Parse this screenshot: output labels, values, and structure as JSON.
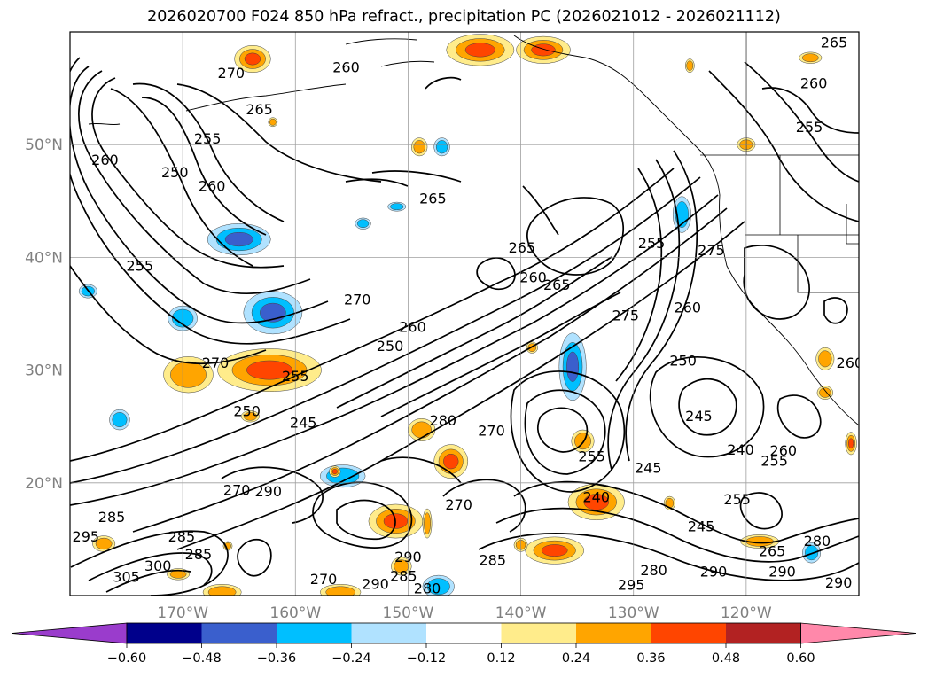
{
  "title": "2026020700 F024 850 hPa refract., precipitation PC (2026021012 - 2026021112)",
  "map": {
    "lat_labels": [
      {
        "text": "50°N",
        "lat": 50
      },
      {
        "text": "40°N",
        "lat": 40
      },
      {
        "text": "30°N",
        "lat": 30
      },
      {
        "text": "20°N",
        "lat": 20
      }
    ],
    "lon_labels": [
      {
        "text": "170°W",
        "lon": -170
      },
      {
        "text": "160°W",
        "lon": -160
      },
      {
        "text": "150°W",
        "lon": -150
      },
      {
        "text": "140°W",
        "lon": -140
      },
      {
        "text": "130°W",
        "lon": -130
      },
      {
        "text": "120°W",
        "lon": -120
      }
    ],
    "lat_range": [
      10,
      60
    ],
    "lon_range": [
      -180,
      -110
    ],
    "grid": true,
    "contour_labels": [
      {
        "text": "270",
        "lon": -165.7,
        "lat": 56.3
      },
      {
        "text": "255",
        "lon": -167.8,
        "lat": 50.5
      },
      {
        "text": "265",
        "lon": -163.2,
        "lat": 53.1
      },
      {
        "text": "260",
        "lon": -155.5,
        "lat": 56.8
      },
      {
        "text": "260",
        "lon": -176.9,
        "lat": 48.6
      },
      {
        "text": "250",
        "lon": -170.7,
        "lat": 47.5
      },
      {
        "text": "260",
        "lon": -167.4,
        "lat": 46.3
      },
      {
        "text": "265",
        "lon": -147.8,
        "lat": 45.2
      },
      {
        "text": "255",
        "lon": -173.8,
        "lat": 39.2
      },
      {
        "text": "270",
        "lon": -154.5,
        "lat": 36.2
      },
      {
        "text": "260",
        "lon": -149.6,
        "lat": 33.8
      },
      {
        "text": "250",
        "lon": -151.6,
        "lat": 32.1
      },
      {
        "text": "270",
        "lon": -167.1,
        "lat": 30.6
      },
      {
        "text": "255",
        "lon": -160.0,
        "lat": 29.4
      },
      {
        "text": "250",
        "lon": -164.3,
        "lat": 26.3
      },
      {
        "text": "245",
        "lon": -159.3,
        "lat": 25.3
      },
      {
        "text": "280",
        "lon": -146.9,
        "lat": 25.5
      },
      {
        "text": "270",
        "lon": -142.6,
        "lat": 24.6
      },
      {
        "text": "260",
        "lon": -138.9,
        "lat": 38.2
      },
      {
        "text": "265",
        "lon": -139.9,
        "lat": 40.8
      },
      {
        "text": "265",
        "lon": -136.8,
        "lat": 37.5
      },
      {
        "text": "275",
        "lon": -130.7,
        "lat": 34.8
      },
      {
        "text": "255",
        "lon": -128.4,
        "lat": 41.2
      },
      {
        "text": "275",
        "lon": -123.1,
        "lat": 40.6
      },
      {
        "text": "260",
        "lon": -125.2,
        "lat": 35.5
      },
      {
        "text": "250",
        "lon": -125.6,
        "lat": 30.8
      },
      {
        "text": "245",
        "lon": -124.2,
        "lat": 25.9
      },
      {
        "text": "240",
        "lon": -120.5,
        "lat": 22.9
      },
      {
        "text": "260",
        "lon": -116.7,
        "lat": 22.8
      },
      {
        "text": "255",
        "lon": -117.5,
        "lat": 21.9
      },
      {
        "text": "255",
        "lon": -133.7,
        "lat": 22.3
      },
      {
        "text": "245",
        "lon": -128.7,
        "lat": 21.3
      },
      {
        "text": "240",
        "lon": -133.3,
        "lat": 18.7
      },
      {
        "text": "255",
        "lon": -120.8,
        "lat": 18.5
      },
      {
        "text": "245",
        "lon": -124.0,
        "lat": 16.1
      },
      {
        "text": "265",
        "lon": -117.7,
        "lat": 13.9
      },
      {
        "text": "270",
        "lon": -145.5,
        "lat": 18.0
      },
      {
        "text": "290",
        "lon": -162.4,
        "lat": 19.2
      },
      {
        "text": "270",
        "lon": -165.2,
        "lat": 19.3
      },
      {
        "text": "295",
        "lon": -178.6,
        "lat": 15.2
      },
      {
        "text": "285",
        "lon": -176.3,
        "lat": 16.9
      },
      {
        "text": "285",
        "lon": -170.1,
        "lat": 15.2
      },
      {
        "text": "285",
        "lon": -168.6,
        "lat": 13.6
      },
      {
        "text": "285",
        "lon": -142.5,
        "lat": 13.1
      },
      {
        "text": "290",
        "lon": -150.0,
        "lat": 13.4
      },
      {
        "text": "285",
        "lon": -150.4,
        "lat": 11.7
      },
      {
        "text": "290",
        "lon": -152.9,
        "lat": 11.0
      },
      {
        "text": "280",
        "lon": -148.3,
        "lat": 10.6
      },
      {
        "text": "270",
        "lon": -157.5,
        "lat": 11.4
      },
      {
        "text": "305",
        "lon": -175.0,
        "lat": 11.6
      },
      {
        "text": "300",
        "lon": -172.2,
        "lat": 12.6
      },
      {
        "text": "280",
        "lon": -113.7,
        "lat": 14.8
      },
      {
        "text": "290",
        "lon": -116.8,
        "lat": 12.1
      },
      {
        "text": "290",
        "lon": -111.8,
        "lat": 11.1
      },
      {
        "text": "295",
        "lon": -130.2,
        "lat": 10.9
      },
      {
        "text": "280",
        "lon": -128.2,
        "lat": 12.2
      },
      {
        "text": "290",
        "lon": -122.9,
        "lat": 12.1
      },
      {
        "text": "260",
        "lon": -114.0,
        "lat": 55.4
      },
      {
        "text": "255",
        "lon": -114.4,
        "lat": 51.5
      },
      {
        "text": "265",
        "lon": -112.2,
        "lat": 59.0
      },
      {
        "text": "260",
        "lon": -110.8,
        "lat": 30.6
      }
    ],
    "precip_blobs": [
      {
        "lon": -143.6,
        "lat": 58.4,
        "rx": 3.0,
        "ry": 1.4,
        "level": 0.36
      },
      {
        "lon": -138.0,
        "lat": 58.4,
        "rx": 2.4,
        "ry": 1.2,
        "level": 0.36
      },
      {
        "lon": -163.8,
        "lat": 57.6,
        "rx": 1.6,
        "ry": 1.2,
        "level": 0.36
      },
      {
        "lon": -114.3,
        "lat": 57.7,
        "rx": 1.0,
        "ry": 0.5,
        "level": 0.24
      },
      {
        "lon": -162.3,
        "lat": 30.0,
        "rx": 4.6,
        "ry": 1.9,
        "level": 0.36
      },
      {
        "lon": -169.5,
        "lat": 29.6,
        "rx": 2.2,
        "ry": 1.6,
        "level": 0.24
      },
      {
        "lon": -165.0,
        "lat": 41.6,
        "rx": 2.8,
        "ry": 1.4,
        "level": -0.36
      },
      {
        "lon": -162.0,
        "lat": 35.1,
        "rx": 2.6,
        "ry": 1.9,
        "level": -0.36
      },
      {
        "lon": -170.0,
        "lat": 34.6,
        "rx": 1.3,
        "ry": 1.1,
        "level": -0.24
      },
      {
        "lon": -135.4,
        "lat": 30.3,
        "rx": 1.2,
        "ry": 3.0,
        "level": -0.36
      },
      {
        "lon": -125.7,
        "lat": 43.8,
        "rx": 0.8,
        "ry": 1.6,
        "level": -0.24
      },
      {
        "lon": -133.3,
        "lat": 18.3,
        "rx": 2.5,
        "ry": 1.6,
        "level": 0.36
      },
      {
        "lon": -134.5,
        "lat": 23.7,
        "rx": 1.0,
        "ry": 1.0,
        "level": 0.24
      },
      {
        "lon": -146.2,
        "lat": 21.9,
        "rx": 1.5,
        "ry": 1.5,
        "level": 0.36
      },
      {
        "lon": -151.1,
        "lat": 16.6,
        "rx": 2.4,
        "ry": 1.5,
        "level": 0.36
      },
      {
        "lon": -137.0,
        "lat": 14.0,
        "rx": 2.6,
        "ry": 1.2,
        "level": 0.36
      },
      {
        "lon": -155.8,
        "lat": 20.6,
        "rx": 2.0,
        "ry": 1.0,
        "level": -0.24
      },
      {
        "lon": -147.3,
        "lat": 10.8,
        "rx": 1.4,
        "ry": 1.0,
        "level": -0.24
      },
      {
        "lon": -148.3,
        "lat": 16.4,
        "rx": 0.4,
        "ry": 1.3,
        "level": 0.24
      },
      {
        "lon": -148.8,
        "lat": 24.7,
        "rx": 1.2,
        "ry": 1.0,
        "level": 0.24
      },
      {
        "lon": -150.6,
        "lat": 12.6,
        "rx": 0.9,
        "ry": 0.8,
        "level": 0.24
      },
      {
        "lon": -156.0,
        "lat": 10.3,
        "rx": 1.8,
        "ry": 0.7,
        "level": 0.24
      },
      {
        "lon": -166.5,
        "lat": 10.3,
        "rx": 1.7,
        "ry": 0.7,
        "level": 0.24
      },
      {
        "lon": -177.0,
        "lat": 14.6,
        "rx": 1.0,
        "ry": 0.7,
        "level": 0.24
      },
      {
        "lon": -170.4,
        "lat": 11.9,
        "rx": 1.0,
        "ry": 0.5,
        "level": 0.24
      },
      {
        "lon": -175.6,
        "lat": 25.6,
        "rx": 0.9,
        "ry": 0.9,
        "level": -0.24
      },
      {
        "lon": -164.0,
        "lat": 25.9,
        "rx": 0.8,
        "ry": 0.5,
        "level": 0.24
      },
      {
        "lon": -149.0,
        "lat": 49.8,
        "rx": 0.7,
        "ry": 0.8,
        "level": 0.24
      },
      {
        "lon": -147.0,
        "lat": 49.8,
        "rx": 0.7,
        "ry": 0.8,
        "level": -0.24
      },
      {
        "lon": -156.5,
        "lat": 21.0,
        "rx": 0.5,
        "ry": 0.5,
        "level": 0.36
      },
      {
        "lon": -110.7,
        "lat": 23.5,
        "rx": 0.5,
        "ry": 1.0,
        "level": 0.36
      },
      {
        "lon": -118.8,
        "lat": 14.8,
        "rx": 1.7,
        "ry": 0.6,
        "level": 0.24
      },
      {
        "lon": -114.2,
        "lat": 13.8,
        "rx": 0.8,
        "ry": 0.9,
        "level": -0.24
      },
      {
        "lon": -113.0,
        "lat": 31.0,
        "rx": 0.8,
        "ry": 1.0,
        "level": 0.24
      },
      {
        "lon": -113.0,
        "lat": 28.0,
        "rx": 0.7,
        "ry": 0.6,
        "level": 0.24
      },
      {
        "lon": -120.0,
        "lat": 50.0,
        "rx": 0.8,
        "ry": 0.6,
        "level": 0.24
      },
      {
        "lon": -125.0,
        "lat": 57.0,
        "rx": 0.4,
        "ry": 0.6,
        "level": 0.24
      },
      {
        "lon": -126.8,
        "lat": 18.2,
        "rx": 0.5,
        "ry": 0.6,
        "level": 0.24
      },
      {
        "lon": -166.0,
        "lat": 14.4,
        "rx": 0.4,
        "ry": 0.4,
        "level": 0.24
      },
      {
        "lon": -178.4,
        "lat": 37.0,
        "rx": 0.8,
        "ry": 0.6,
        "level": -0.24
      },
      {
        "lon": -162.0,
        "lat": 52.0,
        "rx": 0.4,
        "ry": 0.4,
        "level": 0.24
      },
      {
        "lon": -154.0,
        "lat": 43.0,
        "rx": 0.7,
        "ry": 0.5,
        "level": -0.24
      },
      {
        "lon": -151.0,
        "lat": 44.5,
        "rx": 0.8,
        "ry": 0.4,
        "level": -0.24
      },
      {
        "lon": -139.0,
        "lat": 32.0,
        "rx": 0.5,
        "ry": 0.5,
        "level": 0.24
      },
      {
        "lon": -140.0,
        "lat": 14.5,
        "rx": 0.6,
        "ry": 0.6,
        "level": 0.24
      }
    ]
  },
  "colorbar": {
    "colors": [
      "#9a3ccc",
      "#00008b",
      "#3a5fcd",
      "#00bfff",
      "#b0e2ff",
      "#ffffff",
      "#ffec8b",
      "#ffa500",
      "#ff4500",
      "#b22222",
      "#ff88aa"
    ],
    "ticks": [
      "−0.60",
      "−0.48",
      "−0.36",
      "−0.24",
      "−0.12",
      "0.12",
      "0.24",
      "0.36",
      "0.48",
      "0.60"
    ],
    "tick_values": [
      -0.6,
      -0.48,
      -0.36,
      -0.24,
      -0.12,
      0.12,
      0.24,
      0.36,
      0.48,
      0.6
    ]
  }
}
